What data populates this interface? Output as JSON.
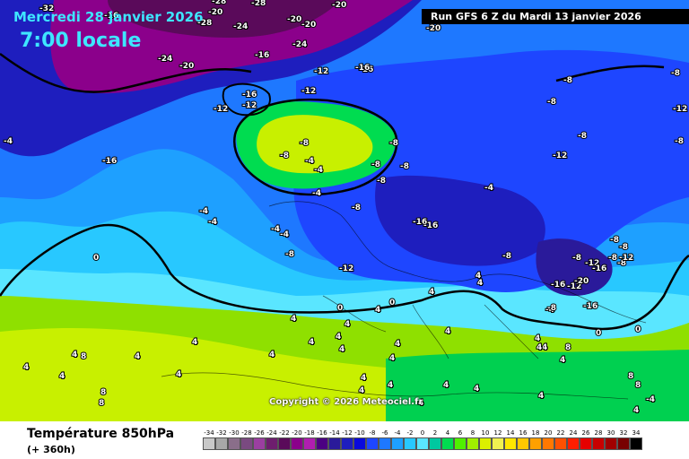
{
  "header": {
    "date": "Mercredi 28 janvier 2026",
    "time": "7:00 locale",
    "run": "Run GFS 6 Z du Mardi 13 janvier 2026"
  },
  "copyright": "Copyright © 2026 Meteociel.fr",
  "legend": {
    "title": "Température 850hPa",
    "subtitle": "(+ 360h)",
    "steps": [
      {
        "value": "-34",
        "color": "#c8c8c8"
      },
      {
        "value": "-32",
        "color": "#a8a8a8"
      },
      {
        "value": "-30",
        "color": "#8a6e8a"
      },
      {
        "value": "-28",
        "color": "#7a4a80"
      },
      {
        "value": "-26",
        "color": "#9b3fa0"
      },
      {
        "value": "-24",
        "color": "#6e1e6e"
      },
      {
        "value": "-22",
        "color": "#5a0a5a"
      },
      {
        "value": "-20",
        "color": "#8b008b"
      },
      {
        "value": "-18",
        "color": "#b01eb0"
      },
      {
        "value": "-16",
        "color": "#4b0082"
      },
      {
        "value": "-14",
        "color": "#2a1a9a"
      },
      {
        "value": "-12",
        "color": "#1e1ebe"
      },
      {
        "value": "-10",
        "color": "#0a0adc"
      },
      {
        "value": "-8",
        "color": "#1e46ff"
      },
      {
        "value": "-6",
        "color": "#1e78ff"
      },
      {
        "value": "-4",
        "color": "#1ea0ff"
      },
      {
        "value": "-2",
        "color": "#28c8ff"
      },
      {
        "value": "0",
        "color": "#5ae6ff"
      },
      {
        "value": "2",
        "color": "#00c8a0"
      },
      {
        "value": "4",
        "color": "#00dc50"
      },
      {
        "value": "6",
        "color": "#50f000"
      },
      {
        "value": "8",
        "color": "#a0f000"
      },
      {
        "value": "10",
        "color": "#dcf000"
      },
      {
        "value": "12",
        "color": "#f0f050"
      },
      {
        "value": "14",
        "color": "#ffe600"
      },
      {
        "value": "16",
        "color": "#ffc800"
      },
      {
        "value": "18",
        "color": "#ffa000"
      },
      {
        "value": "20",
        "color": "#ff7800"
      },
      {
        "value": "22",
        "color": "#ff5000"
      },
      {
        "value": "24",
        "color": "#ff1e00"
      },
      {
        "value": "26",
        "color": "#e60000"
      },
      {
        "value": "28",
        "color": "#c80000"
      },
      {
        "value": "30",
        "color": "#a00000"
      },
      {
        "value": "32",
        "color": "#780000"
      },
      {
        "value": "34",
        "color": "#000000"
      }
    ]
  },
  "map_labels": [
    "-32",
    "-20",
    "-20",
    "-28",
    "-24",
    "-20",
    "-28",
    "-28",
    "-16",
    "-20",
    "-16",
    "-24",
    "-24",
    "-20",
    "-12",
    "-16",
    "-16",
    "-20",
    "-16",
    "-12",
    "-12",
    "-16",
    "-12",
    "-12",
    "-4",
    "-4",
    "-4",
    "-4",
    "-8",
    "-8",
    "-8",
    "-4",
    "-16",
    "-8",
    "-8",
    "-8",
    "-8",
    "-8",
    "-8",
    "-8",
    "-12",
    "-8",
    "-8",
    "-12",
    "-16",
    "-8",
    "-8",
    "-4",
    "-4",
    "-8",
    "-4",
    "-4",
    "-8",
    "-4",
    "-8",
    "-12",
    "-8",
    "-8",
    "-12",
    "-16",
    "-12",
    "-16",
    "-20",
    "-16",
    "-8",
    "0",
    "4",
    "4",
    "0",
    "4",
    "4",
    "4",
    "4",
    "4",
    "4",
    "4",
    "4",
    "4",
    "8",
    "8",
    "4",
    "4",
    "4",
    "4",
    "4",
    "4",
    "4",
    "4",
    "4",
    "4",
    "4",
    "0",
    "0",
    "4",
    "4",
    "8",
    "8",
    "8",
    "-4",
    "4",
    "0",
    "4",
    "4",
    "4",
    "4",
    "8",
    "4",
    "4"
  ]
}
